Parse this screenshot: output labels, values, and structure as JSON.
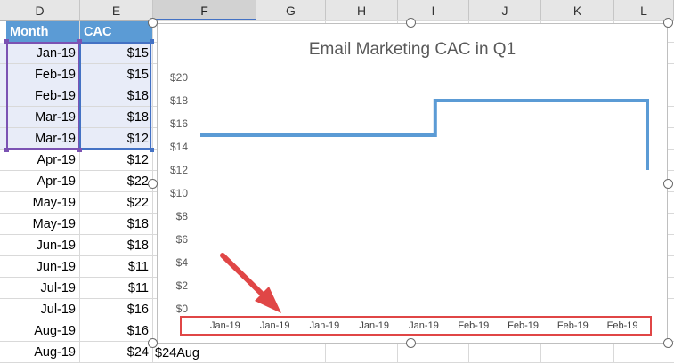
{
  "columns": {
    "headers": [
      "D",
      "E",
      "F",
      "G",
      "H",
      "I",
      "J",
      "K",
      "L"
    ],
    "selected": [
      "F"
    ]
  },
  "table": {
    "header_month": "Month",
    "header_cac": "CAC",
    "rows": [
      {
        "month": "Jan-19",
        "cac": "$15",
        "selected": true
      },
      {
        "month": "Feb-19",
        "cac": "$15",
        "selected": true
      },
      {
        "month": "Feb-19",
        "cac": "$18",
        "selected": true
      },
      {
        "month": "Mar-19",
        "cac": "$18",
        "selected": true
      },
      {
        "month": "Mar-19",
        "cac": "$12",
        "selected": true
      },
      {
        "month": "Apr-19",
        "cac": "$12",
        "selected": false
      },
      {
        "month": "Apr-19",
        "cac": "$22",
        "selected": false
      },
      {
        "month": "May-19",
        "cac": "$22",
        "selected": false
      },
      {
        "month": "May-19",
        "cac": "$18",
        "selected": false
      },
      {
        "month": "Jun-19",
        "cac": "$18",
        "selected": false
      },
      {
        "month": "Jun-19",
        "cac": "$11",
        "selected": false
      },
      {
        "month": "Jul-19",
        "cac": "$11",
        "selected": false
      },
      {
        "month": "Jul-19",
        "cac": "$16",
        "selected": false
      },
      {
        "month": "Aug-19",
        "cac": "$16",
        "selected": false
      },
      {
        "month": "Aug-19",
        "cac": "$24",
        "selected": false
      }
    ],
    "overflow_text": "$24Aug"
  },
  "chart_data": {
    "type": "line",
    "title": "Email Marketing CAC in Q1",
    "y_ticks": [
      "$20",
      "$18",
      "$16",
      "$14",
      "$12",
      "$10",
      "$8",
      "$6",
      "$4",
      "$2",
      "$0"
    ],
    "ylim": [
      0,
      20
    ],
    "x_tick_labels": [
      "Jan-19",
      "Jan-19",
      "Jan-19",
      "Jan-19",
      "Jan-19",
      "Feb-19",
      "Feb-19",
      "Feb-19",
      "Feb-19"
    ],
    "series": [
      {
        "color": "#5b9bd5",
        "points": [
          {
            "x": "2019-01-01",
            "y": 15
          },
          {
            "x": "2019-02-01",
            "y": 15
          },
          {
            "x": "2019-02-01",
            "y": 18
          },
          {
            "x": "2019-03-01",
            "y": 18
          },
          {
            "x": "2019-03-01",
            "y": 12
          }
        ]
      }
    ],
    "gridlines": false,
    "legend": "none",
    "x_axis_highlight_color": "#e04646",
    "annotation_arrow_color": "#e04646"
  }
}
